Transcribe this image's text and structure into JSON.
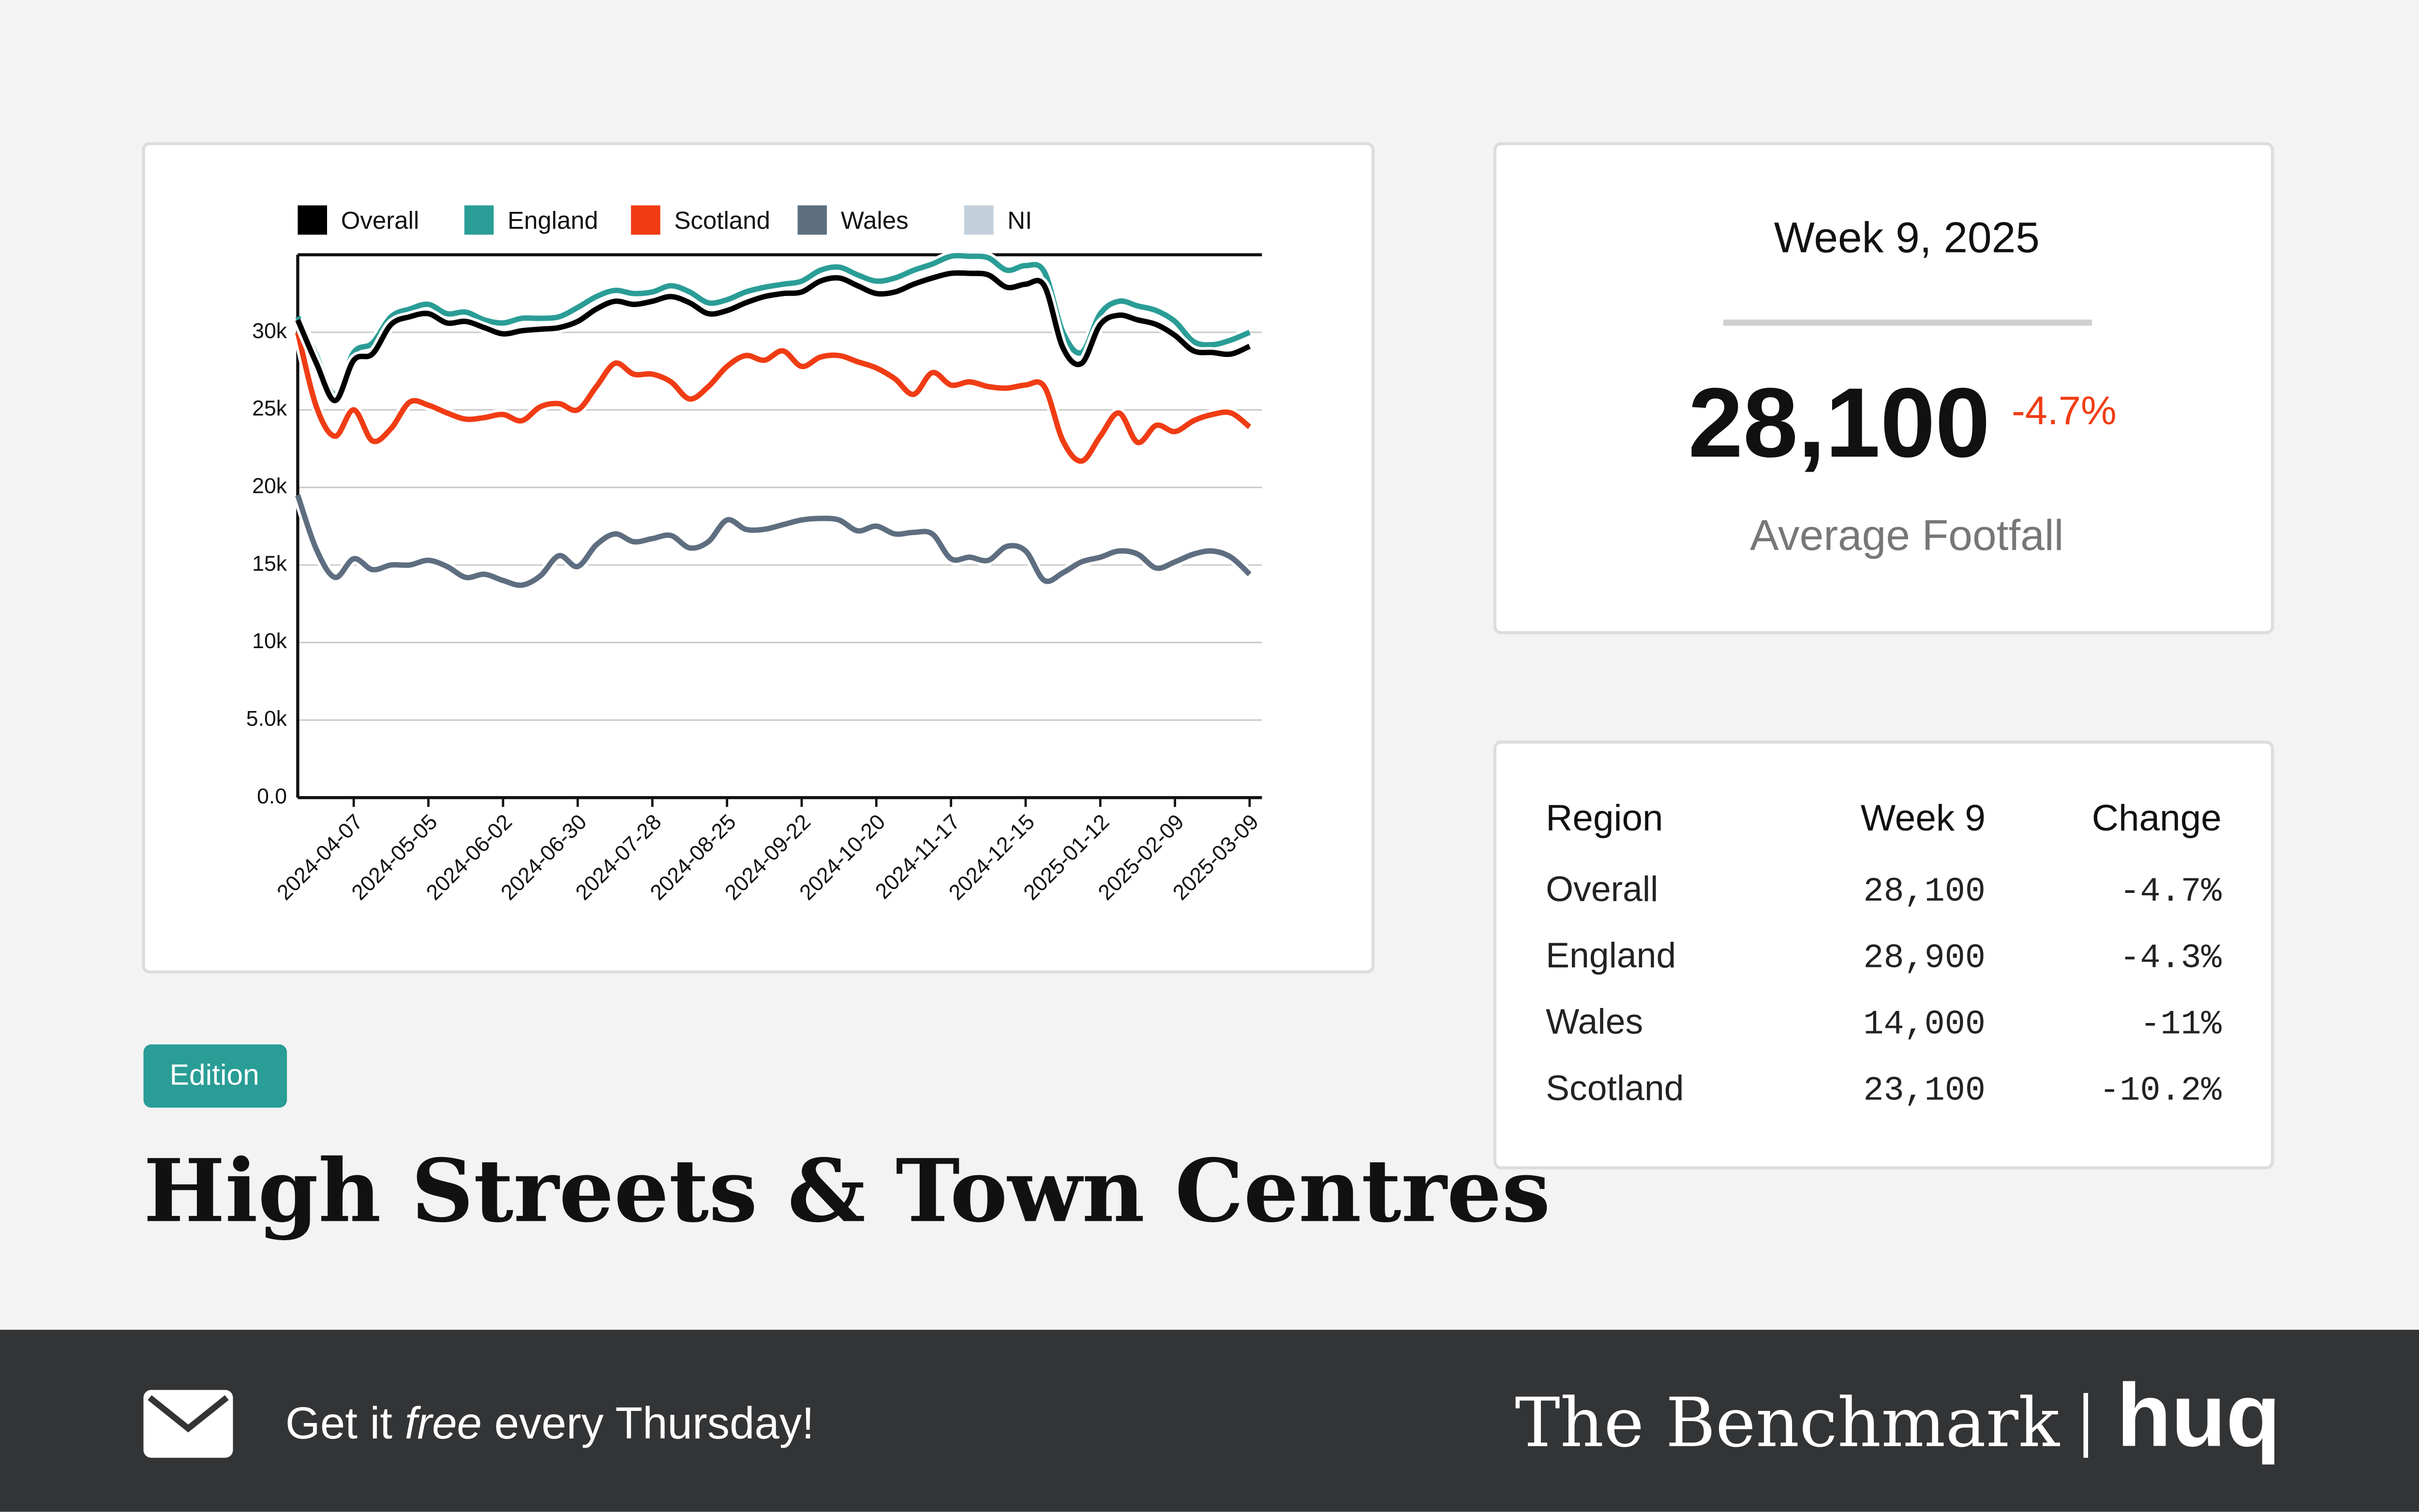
{
  "chart_data": {
    "type": "line",
    "x": [
      "2024-03-17",
      "2024-03-24",
      "2024-03-31",
      "2024-04-07",
      "2024-04-14",
      "2024-04-21",
      "2024-04-28",
      "2024-05-05",
      "2024-05-12",
      "2024-05-19",
      "2024-05-26",
      "2024-06-02",
      "2024-06-09",
      "2024-06-16",
      "2024-06-23",
      "2024-06-30",
      "2024-07-07",
      "2024-07-14",
      "2024-07-21",
      "2024-07-28",
      "2024-08-04",
      "2024-08-11",
      "2024-08-18",
      "2024-08-25",
      "2024-09-01",
      "2024-09-08",
      "2024-09-15",
      "2024-09-22",
      "2024-09-29",
      "2024-10-06",
      "2024-10-13",
      "2024-10-20",
      "2024-10-27",
      "2024-11-03",
      "2024-11-10",
      "2024-11-17",
      "2024-11-24",
      "2024-12-01",
      "2024-12-08",
      "2024-12-15",
      "2024-12-22",
      "2024-12-29",
      "2025-01-05",
      "2025-01-12",
      "2025-01-19",
      "2025-01-26",
      "2025-02-02",
      "2025-02-09",
      "2025-02-16",
      "2025-02-23",
      "2025-03-02",
      "2025-03-09"
    ],
    "series": [
      {
        "name": "Overall",
        "color": "#000000",
        "values": [
          30800,
          28000,
          25600,
          28200,
          28600,
          30500,
          31000,
          31200,
          30600,
          30700,
          30300,
          29900,
          30100,
          30200,
          30300,
          30700,
          31500,
          32000,
          31800,
          32000,
          32300,
          31900,
          31200,
          31400,
          31900,
          32300,
          32500,
          32600,
          33300,
          33500,
          33000,
          32500,
          32600,
          33100,
          33500,
          33800,
          33800,
          33700,
          32900,
          33100,
          33000,
          29000,
          28000,
          30500,
          31100,
          30800,
          30500,
          29800,
          28800,
          28700,
          28600,
          29100
        ]
      },
      {
        "name": "England",
        "color": "#2a9d96",
        "values": [
          31000,
          28500,
          26000,
          28700,
          29300,
          31000,
          31500,
          31800,
          31200,
          31300,
          30800,
          30600,
          30900,
          30900,
          31000,
          31600,
          32300,
          32700,
          32500,
          32600,
          33000,
          32600,
          31900,
          32100,
          32600,
          32900,
          33100,
          33300,
          34000,
          34200,
          33700,
          33300,
          33500,
          34000,
          34400,
          34900,
          34900,
          34800,
          34000,
          34300,
          33900,
          30000,
          28700,
          31200,
          32000,
          31700,
          31400,
          30700,
          29400,
          29200,
          29500,
          30000
        ]
      },
      {
        "name": "Scotland",
        "color": "#f03c14",
        "values": [
          30000,
          25200,
          23300,
          25000,
          23000,
          23800,
          25500,
          25300,
          24800,
          24400,
          24500,
          24700,
          24300,
          25200,
          25400,
          25000,
          26500,
          28000,
          27300,
          27300,
          26800,
          25700,
          26500,
          27800,
          28500,
          28200,
          28800,
          27800,
          28400,
          28500,
          28100,
          27700,
          27000,
          26000,
          27400,
          26600,
          26800,
          26500,
          26400,
          26600,
          26500,
          23000,
          21700,
          23300,
          24800,
          22900,
          24000,
          23600,
          24300,
          24700,
          24800,
          23900
        ]
      },
      {
        "name": "Wales",
        "color": "#5e6e80",
        "values": [
          19500,
          16000,
          14200,
          15400,
          14700,
          15000,
          15000,
          15300,
          14900,
          14200,
          14400,
          14000,
          13700,
          14300,
          15600,
          14900,
          16300,
          17000,
          16500,
          16700,
          16900,
          16100,
          16500,
          17900,
          17300,
          17300,
          17600,
          17900,
          18000,
          17900,
          17200,
          17500,
          17000,
          17100,
          17000,
          15400,
          15500,
          15300,
          16200,
          15900,
          14000,
          14500,
          15200,
          15500,
          15900,
          15700,
          14800,
          15200,
          15700,
          15900,
          15500,
          14400
        ]
      },
      {
        "name": "NI",
        "color": "#c3d0db",
        "values": [
          null,
          null,
          null,
          null,
          null,
          null,
          null,
          null,
          null,
          null,
          null,
          null,
          null,
          null,
          null,
          null,
          null,
          null,
          null,
          null,
          null,
          null,
          null,
          null,
          null,
          null,
          null,
          null,
          null,
          null,
          null,
          null,
          null,
          null,
          null,
          null,
          null,
          null,
          null,
          null,
          null,
          null,
          null,
          null,
          null,
          null,
          null,
          null,
          null,
          null,
          null,
          null
        ]
      }
    ],
    "xlim": [
      "2024-03-17",
      "2025-03-09"
    ],
    "xticks": [
      "2024-04-07",
      "2024-05-05",
      "2024-06-02",
      "2024-06-30",
      "2024-07-28",
      "2024-08-25",
      "2024-09-22",
      "2024-10-20",
      "2024-11-17",
      "2024-12-15",
      "2025-01-12",
      "2025-02-09",
      "2025-03-09"
    ],
    "ylim": [
      0,
      35000
    ],
    "yticks": [
      {
        "value": 0,
        "label": "0.0"
      },
      {
        "value": 5000,
        "label": "5.0k"
      },
      {
        "value": 10000,
        "label": "10k"
      },
      {
        "value": 15000,
        "label": "15k"
      },
      {
        "value": 20000,
        "label": "20k"
      },
      {
        "value": 25000,
        "label": "25k"
      },
      {
        "value": 30000,
        "label": "30k"
      }
    ],
    "grid": true,
    "legend": "top"
  },
  "kpi": {
    "period": "Week 9, 2025",
    "value": "28,100",
    "change": "-4.7%",
    "label": "Average Footfall"
  },
  "table": {
    "header": [
      "Region",
      "Week 9",
      "Change"
    ],
    "rows": [
      [
        "Overall",
        "28,100",
        "-4.7%"
      ],
      [
        "England",
        "28,900",
        "-4.3%"
      ],
      [
        "Wales",
        "14,000",
        "-11%"
      ],
      [
        "Scotland",
        "23,100",
        "-10.2%"
      ]
    ]
  },
  "badge": "Edition",
  "title": "High Streets & Town Centres",
  "footer": {
    "cta": [
      "Get it ",
      "free",
      " every Thursday!"
    ],
    "brand": "The Benchmark",
    "logo": "huq"
  }
}
